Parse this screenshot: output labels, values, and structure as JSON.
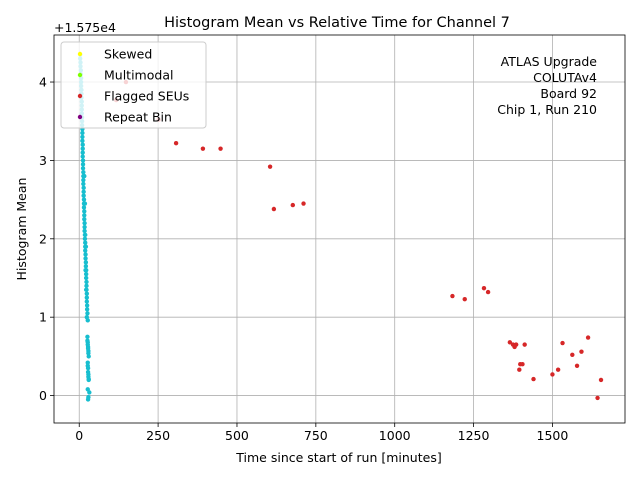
{
  "chart_data": {
    "type": "scatter",
    "title": "Histogram Mean vs Relative Time for Channel 7",
    "xlabel": "Time since start of run [minutes]",
    "ylabel": "Histogram Mean",
    "offset_label": "+1.575e4",
    "xlim": [
      -80,
      1730
    ],
    "ylim": [
      15749.65,
      15754.6
    ],
    "xticks": [
      0,
      250,
      500,
      750,
      1000,
      1250,
      1500
    ],
    "yticks": [
      0,
      1,
      2,
      3,
      4
    ],
    "grid": true,
    "legend_position": "top-left",
    "annotation": [
      "ATLAS Upgrade",
      "COLUTAv4",
      "Board 92",
      "Chip 1, Run 210"
    ],
    "colors": {
      "normal": "#17becf",
      "skewed": "#ffff00",
      "multimodal": "#7fff00",
      "flagged": "#d62728",
      "repeat": "#800080",
      "grid": "#b0b0b0"
    },
    "legend": [
      {
        "label": "Skewed",
        "color": "#ffff00"
      },
      {
        "label": "Multimodal",
        "color": "#7fff00"
      },
      {
        "label": "Flagged SEUs",
        "color": "#d62728"
      },
      {
        "label": "Repeat Bin",
        "color": "#800080"
      }
    ],
    "series": [
      {
        "color": "#17becf",
        "points": [
          [
            3,
            15754.35
          ],
          [
            3,
            15754.3
          ],
          [
            4,
            15754.25
          ],
          [
            4,
            15754.2
          ],
          [
            5,
            15754.15
          ],
          [
            5,
            15754.1
          ],
          [
            6,
            15754.05
          ],
          [
            6,
            15754.0
          ],
          [
            6,
            15753.95
          ],
          [
            7,
            15753.9
          ],
          [
            7,
            15753.85
          ],
          [
            7,
            15753.8
          ],
          [
            8,
            15753.75
          ],
          [
            8,
            15753.7
          ],
          [
            8,
            15753.65
          ],
          [
            8,
            15753.6
          ],
          [
            9,
            15753.55
          ],
          [
            9,
            15753.5
          ],
          [
            9,
            15753.45
          ],
          [
            10,
            15753.4
          ],
          [
            10,
            15753.35
          ],
          [
            10,
            15753.3
          ],
          [
            10,
            15753.25
          ],
          [
            11,
            15753.2
          ],
          [
            11,
            15753.15
          ],
          [
            11,
            15753.1
          ],
          [
            11,
            15753.05
          ],
          [
            12,
            15753.0
          ],
          [
            12,
            15752.95
          ],
          [
            12,
            15752.9
          ],
          [
            13,
            15752.85
          ],
          [
            13,
            15752.8
          ],
          [
            13,
            15752.75
          ],
          [
            13,
            15752.7
          ],
          [
            14,
            15752.65
          ],
          [
            14,
            15752.6
          ],
          [
            14,
            15752.55
          ],
          [
            15,
            15752.5
          ],
          [
            15,
            15752.45
          ],
          [
            15,
            15752.4
          ],
          [
            16,
            15752.35
          ],
          [
            16,
            15752.3
          ],
          [
            16,
            15752.25
          ],
          [
            17,
            15752.2
          ],
          [
            17,
            15752.15
          ],
          [
            17,
            15752.1
          ],
          [
            18,
            15752.05
          ],
          [
            18,
            15752.0
          ],
          [
            19,
            15751.95
          ],
          [
            19,
            15751.9
          ],
          [
            19,
            15751.85
          ],
          [
            20,
            15751.8
          ],
          [
            20,
            15751.75
          ],
          [
            21,
            15751.7
          ],
          [
            21,
            15751.65
          ],
          [
            22,
            15751.6
          ],
          [
            22,
            15751.55
          ],
          [
            22,
            15751.5
          ],
          [
            23,
            15751.45
          ],
          [
            23,
            15751.4
          ],
          [
            23,
            15751.35
          ],
          [
            24,
            15751.3
          ],
          [
            24,
            15751.25
          ],
          [
            24,
            15751.2
          ],
          [
            25,
            15751.15
          ],
          [
            25,
            15751.1
          ],
          [
            26,
            15751.05
          ],
          [
            27,
            15750.96
          ],
          [
            26,
            15750.75
          ],
          [
            26,
            15750.7
          ],
          [
            27,
            15750.68
          ],
          [
            27,
            15750.65
          ],
          [
            28,
            15750.62
          ],
          [
            28,
            15750.6
          ],
          [
            29,
            15750.57
          ],
          [
            29,
            15750.54
          ],
          [
            30,
            15750.5
          ],
          [
            27,
            15750.42
          ],
          [
            27,
            15750.38
          ],
          [
            28,
            15750.35
          ],
          [
            28,
            15750.3
          ],
          [
            29,
            15750.27
          ],
          [
            29,
            15750.24
          ],
          [
            30,
            15750.21
          ],
          [
            30,
            15750.2
          ],
          [
            27,
            15750.08
          ],
          [
            32,
            15750.04
          ],
          [
            29,
            15749.98
          ],
          [
            28,
            15749.95
          ],
          [
            18,
            15752.45
          ],
          [
            16,
            15752.8
          ],
          [
            21,
            15751.9
          ],
          [
            19,
            15752.05
          ],
          [
            22,
            15751.35
          ],
          [
            24,
            15751.0
          ],
          [
            20,
            15751.6
          ]
        ]
      },
      {
        "color": "#d62728",
        "points": [
          [
            117,
            15753.77
          ],
          [
            148,
            15754.0
          ],
          [
            252,
            15753.52
          ],
          [
            307,
            15753.22
          ],
          [
            392,
            15753.15
          ],
          [
            448,
            15753.15
          ],
          [
            605,
            15752.92
          ],
          [
            617,
            15752.38
          ],
          [
            677,
            15752.43
          ],
          [
            711,
            15752.45
          ],
          [
            1183,
            15751.27
          ],
          [
            1222,
            15751.23
          ],
          [
            1283,
            15751.37
          ],
          [
            1296,
            15751.32
          ],
          [
            1365,
            15750.68
          ],
          [
            1375,
            15750.65
          ],
          [
            1380,
            15750.62
          ],
          [
            1385,
            15750.65
          ],
          [
            1395,
            15750.33
          ],
          [
            1398,
            15750.4
          ],
          [
            1405,
            15750.4
          ],
          [
            1412,
            15750.65
          ],
          [
            1440,
            15750.21
          ],
          [
            1500,
            15750.27
          ],
          [
            1518,
            15750.33
          ],
          [
            1532,
            15750.67
          ],
          [
            1563,
            15750.52
          ],
          [
            1578,
            15750.38
          ],
          [
            1592,
            15750.56
          ],
          [
            1613,
            15750.74
          ],
          [
            1643,
            15749.97
          ],
          [
            1654,
            15750.2
          ]
        ]
      }
    ]
  }
}
